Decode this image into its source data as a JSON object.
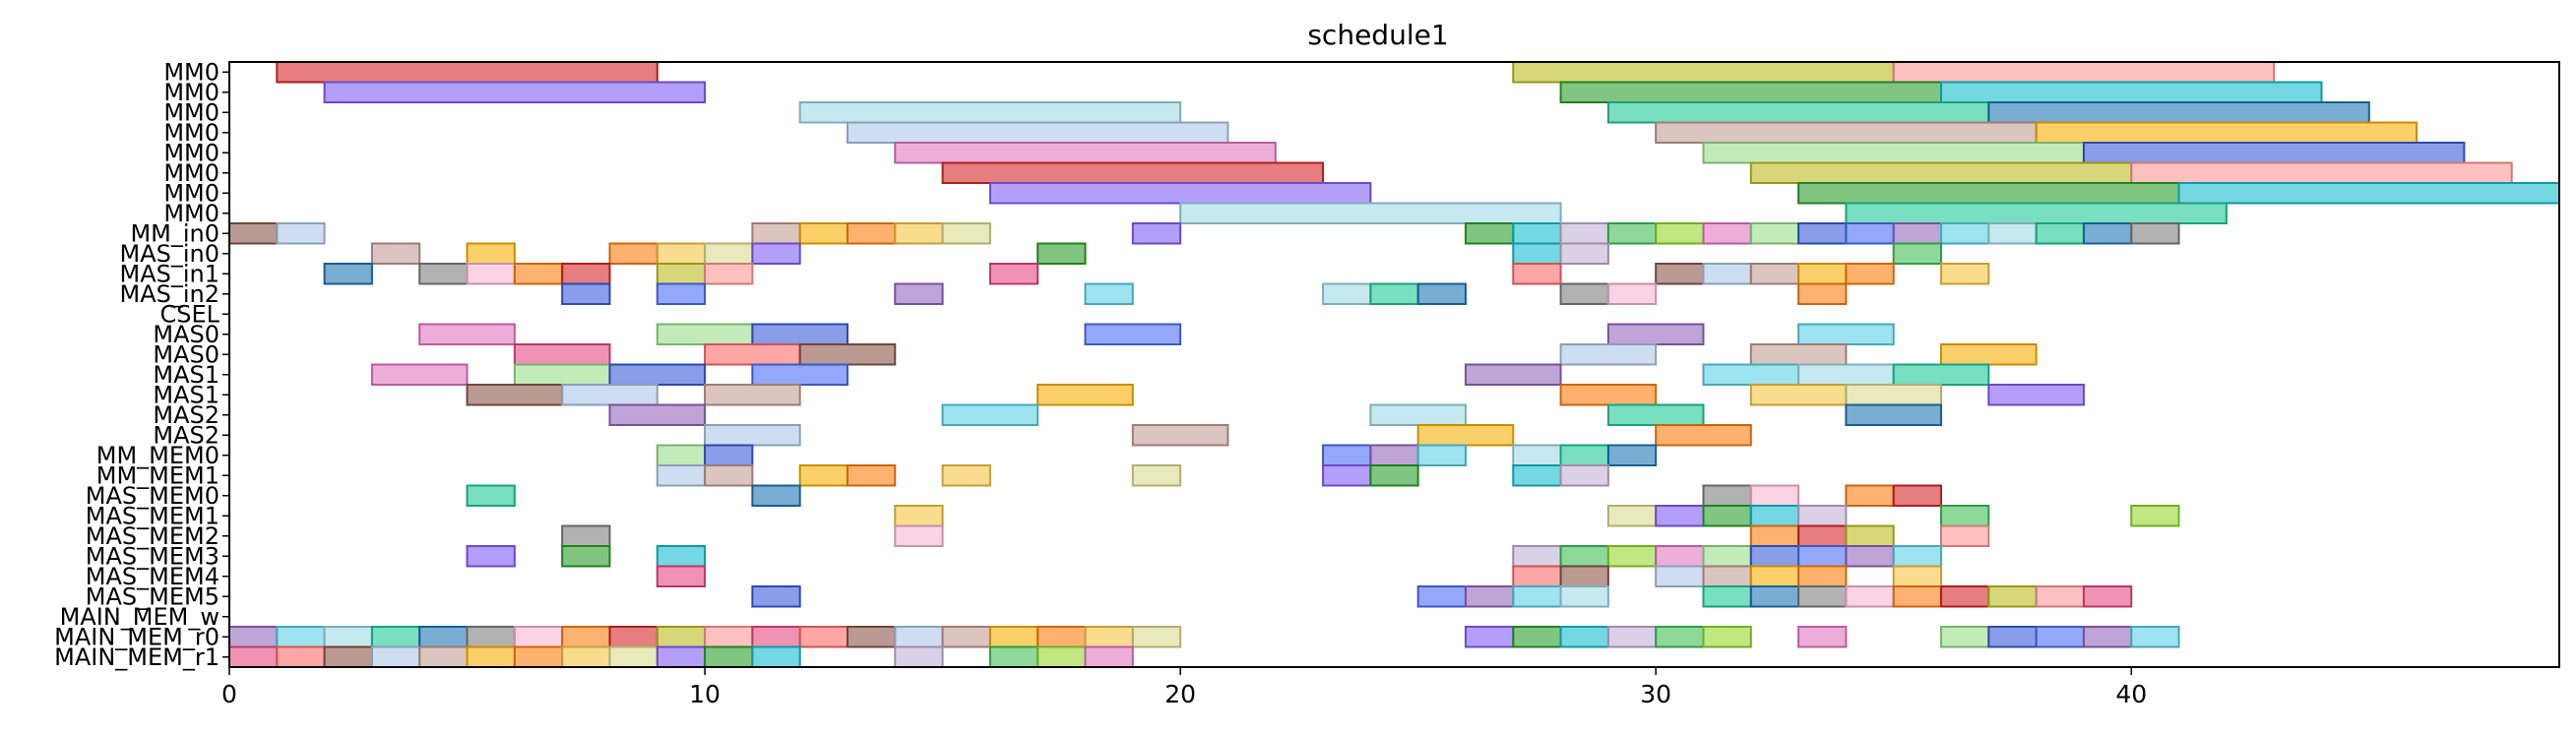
{
  "chart_data": {
    "type": "gantt",
    "title": "schedule1",
    "xlabel": "",
    "ylabel": "",
    "xlim": [
      0,
      49
    ],
    "xticks": [
      0,
      10,
      20,
      30,
      40
    ],
    "grid": false,
    "rows": [
      "MM0",
      "MM0",
      "MM0",
      "MM0",
      "MM0",
      "MM0",
      "MM0",
      "MM0",
      "MM_in0",
      "MAS_in0",
      "MAS_in1",
      "MAS_in2",
      "CSEL",
      "MAS0",
      "MAS0",
      "MAS1",
      "MAS1",
      "MAS2",
      "MAS2",
      "MM_MEM0",
      "MM_MEM1",
      "MAS_MEM0",
      "MAS_MEM1",
      "MAS_MEM2",
      "MAS_MEM3",
      "MAS_MEM4",
      "MAS_MEM5",
      "MAIN_MEM_w",
      "MAIN_MEM_r0",
      "MAIN_MEM_r1"
    ],
    "palette": [
      "#d62728",
      "#2ca02c",
      "#1f77b4",
      "#ff7f0e",
      "#9467bd",
      "#8c564b",
      "#e377c2",
      "#bcbd22",
      "#17becf",
      "#7f7f7f",
      "#f5c542",
      "#5bd1e6",
      "#aec7e8",
      "#98df8a",
      "#ff9896",
      "#c5b0d5",
      "#f7b6d2",
      "#dbdb8d",
      "#9edae5",
      "#c49c94",
      "#3b5bdb",
      "#e64980",
      "#40c057",
      "#fd7e14",
      "#845ef7",
      "#20c997",
      "#fab005",
      "#4c6ef5",
      "#ff6b6b",
      "#94d82d"
    ],
    "tasks": [
      {
        "row": 0,
        "start": 1,
        "end": 9
      },
      {
        "row": 0,
        "start": 27,
        "end": 35
      },
      {
        "row": 0,
        "start": 35,
        "end": 43
      },
      {
        "row": 1,
        "start": 2,
        "end": 10
      },
      {
        "row": 1,
        "start": 28,
        "end": 36
      },
      {
        "row": 1,
        "start": 36,
        "end": 44
      },
      {
        "row": 2,
        "start": 12,
        "end": 20
      },
      {
        "row": 2,
        "start": 29,
        "end": 37
      },
      {
        "row": 2,
        "start": 37,
        "end": 45
      },
      {
        "row": 3,
        "start": 13,
        "end": 21
      },
      {
        "row": 3,
        "start": 30,
        "end": 38
      },
      {
        "row": 3,
        "start": 38,
        "end": 46
      },
      {
        "row": 4,
        "start": 14,
        "end": 22
      },
      {
        "row": 4,
        "start": 31,
        "end": 39
      },
      {
        "row": 4,
        "start": 39,
        "end": 47
      },
      {
        "row": 5,
        "start": 15,
        "end": 23
      },
      {
        "row": 5,
        "start": 32,
        "end": 40
      },
      {
        "row": 5,
        "start": 40,
        "end": 48
      },
      {
        "row": 6,
        "start": 16,
        "end": 24
      },
      {
        "row": 6,
        "start": 33,
        "end": 41
      },
      {
        "row": 6,
        "start": 41,
        "end": 49
      },
      {
        "row": 7,
        "start": 20,
        "end": 28
      },
      {
        "row": 7,
        "start": 34,
        "end": 42
      },
      {
        "row": 8,
        "start": 0,
        "end": 1
      },
      {
        "row": 8,
        "start": 1,
        "end": 2
      },
      {
        "row": 8,
        "start": 11,
        "end": 12
      },
      {
        "row": 8,
        "start": 12,
        "end": 13
      },
      {
        "row": 8,
        "start": 13,
        "end": 14
      },
      {
        "row": 8,
        "start": 14,
        "end": 15
      },
      {
        "row": 8,
        "start": 15,
        "end": 16
      },
      {
        "row": 8,
        "start": 19,
        "end": 20
      },
      {
        "row": 8,
        "start": 26,
        "end": 27
      },
      {
        "row": 8,
        "start": 27,
        "end": 28
      },
      {
        "row": 8,
        "start": 28,
        "end": 29
      },
      {
        "row": 8,
        "start": 29,
        "end": 30
      },
      {
        "row": 8,
        "start": 30,
        "end": 31
      },
      {
        "row": 8,
        "start": 31,
        "end": 32
      },
      {
        "row": 8,
        "start": 32,
        "end": 33
      },
      {
        "row": 8,
        "start": 33,
        "end": 34
      },
      {
        "row": 8,
        "start": 34,
        "end": 35
      },
      {
        "row": 8,
        "start": 35,
        "end": 36
      },
      {
        "row": 8,
        "start": 36,
        "end": 37
      },
      {
        "row": 8,
        "start": 37,
        "end": 38
      },
      {
        "row": 8,
        "start": 38,
        "end": 39
      },
      {
        "row": 8,
        "start": 39,
        "end": 40
      },
      {
        "row": 8,
        "start": 40,
        "end": 41
      },
      {
        "row": 9,
        "start": 3,
        "end": 4
      },
      {
        "row": 9,
        "start": 5,
        "end": 6
      },
      {
        "row": 9,
        "start": 8,
        "end": 9
      },
      {
        "row": 9,
        "start": 9,
        "end": 10
      },
      {
        "row": 9,
        "start": 10,
        "end": 11
      },
      {
        "row": 9,
        "start": 11,
        "end": 12
      },
      {
        "row": 9,
        "start": 17,
        "end": 18
      },
      {
        "row": 9,
        "start": 27,
        "end": 28
      },
      {
        "row": 9,
        "start": 28,
        "end": 29
      },
      {
        "row": 9,
        "start": 35,
        "end": 36
      },
      {
        "row": 10,
        "start": 2,
        "end": 3
      },
      {
        "row": 10,
        "start": 4,
        "end": 5
      },
      {
        "row": 10,
        "start": 5,
        "end": 6
      },
      {
        "row": 10,
        "start": 6,
        "end": 7
      },
      {
        "row": 10,
        "start": 7,
        "end": 8
      },
      {
        "row": 10,
        "start": 9,
        "end": 10
      },
      {
        "row": 10,
        "start": 10,
        "end": 11
      },
      {
        "row": 10,
        "start": 16,
        "end": 17
      },
      {
        "row": 10,
        "start": 27,
        "end": 28
      },
      {
        "row": 10,
        "start": 30,
        "end": 31
      },
      {
        "row": 10,
        "start": 31,
        "end": 32
      },
      {
        "row": 10,
        "start": 32,
        "end": 33
      },
      {
        "row": 10,
        "start": 33,
        "end": 34
      },
      {
        "row": 10,
        "start": 34,
        "end": 35
      },
      {
        "row": 10,
        "start": 36,
        "end": 37
      },
      {
        "row": 11,
        "start": 7,
        "end": 8
      },
      {
        "row": 11,
        "start": 9,
        "end": 10
      },
      {
        "row": 11,
        "start": 14,
        "end": 15
      },
      {
        "row": 11,
        "start": 18,
        "end": 19
      },
      {
        "row": 11,
        "start": 23,
        "end": 24
      },
      {
        "row": 11,
        "start": 24,
        "end": 25
      },
      {
        "row": 11,
        "start": 25,
        "end": 26
      },
      {
        "row": 11,
        "start": 28,
        "end": 29
      },
      {
        "row": 11,
        "start": 29,
        "end": 30
      },
      {
        "row": 11,
        "start": 33,
        "end": 34
      },
      {
        "row": 13,
        "start": 4,
        "end": 6
      },
      {
        "row": 13,
        "start": 9,
        "end": 11
      },
      {
        "row": 13,
        "start": 11,
        "end": 13
      },
      {
        "row": 13,
        "start": 18,
        "end": 20
      },
      {
        "row": 13,
        "start": 29,
        "end": 31
      },
      {
        "row": 13,
        "start": 33,
        "end": 35
      },
      {
        "row": 14,
        "start": 6,
        "end": 8
      },
      {
        "row": 14,
        "start": 10,
        "end": 12
      },
      {
        "row": 14,
        "start": 12,
        "end": 14
      },
      {
        "row": 14,
        "start": 28,
        "end": 30
      },
      {
        "row": 14,
        "start": 32,
        "end": 34
      },
      {
        "row": 14,
        "start": 36,
        "end": 38
      },
      {
        "row": 15,
        "start": 3,
        "end": 5
      },
      {
        "row": 15,
        "start": 6,
        "end": 8
      },
      {
        "row": 15,
        "start": 8,
        "end": 10
      },
      {
        "row": 15,
        "start": 11,
        "end": 13
      },
      {
        "row": 15,
        "start": 26,
        "end": 28
      },
      {
        "row": 15,
        "start": 31,
        "end": 33
      },
      {
        "row": 15,
        "start": 33,
        "end": 35
      },
      {
        "row": 15,
        "start": 35,
        "end": 37
      },
      {
        "row": 16,
        "start": 5,
        "end": 7
      },
      {
        "row": 16,
        "start": 7,
        "end": 9
      },
      {
        "row": 16,
        "start": 10,
        "end": 12
      },
      {
        "row": 16,
        "start": 17,
        "end": 19
      },
      {
        "row": 16,
        "start": 28,
        "end": 30
      },
      {
        "row": 16,
        "start": 32,
        "end": 34
      },
      {
        "row": 16,
        "start": 34,
        "end": 36
      },
      {
        "row": 16,
        "start": 37,
        "end": 39
      },
      {
        "row": 17,
        "start": 8,
        "end": 10
      },
      {
        "row": 17,
        "start": 15,
        "end": 17
      },
      {
        "row": 17,
        "start": 24,
        "end": 26
      },
      {
        "row": 17,
        "start": 29,
        "end": 31
      },
      {
        "row": 17,
        "start": 34,
        "end": 36
      },
      {
        "row": 18,
        "start": 10,
        "end": 12
      },
      {
        "row": 18,
        "start": 19,
        "end": 21
      },
      {
        "row": 18,
        "start": 25,
        "end": 27
      },
      {
        "row": 18,
        "start": 30,
        "end": 32
      },
      {
        "row": 19,
        "start": 9,
        "end": 10
      },
      {
        "row": 19,
        "start": 10,
        "end": 11
      },
      {
        "row": 19,
        "start": 23,
        "end": 24
      },
      {
        "row": 19,
        "start": 24,
        "end": 25
      },
      {
        "row": 19,
        "start": 25,
        "end": 26
      },
      {
        "row": 19,
        "start": 27,
        "end": 28
      },
      {
        "row": 19,
        "start": 28,
        "end": 29
      },
      {
        "row": 19,
        "start": 29,
        "end": 30
      },
      {
        "row": 20,
        "start": 9,
        "end": 10
      },
      {
        "row": 20,
        "start": 10,
        "end": 11
      },
      {
        "row": 20,
        "start": 12,
        "end": 13
      },
      {
        "row": 20,
        "start": 13,
        "end": 14
      },
      {
        "row": 20,
        "start": 15,
        "end": 16
      },
      {
        "row": 20,
        "start": 19,
        "end": 20
      },
      {
        "row": 20,
        "start": 23,
        "end": 24
      },
      {
        "row": 20,
        "start": 24,
        "end": 25
      },
      {
        "row": 20,
        "start": 27,
        "end": 28
      },
      {
        "row": 20,
        "start": 28,
        "end": 29
      },
      {
        "row": 21,
        "start": 5,
        "end": 6
      },
      {
        "row": 21,
        "start": 11,
        "end": 12
      },
      {
        "row": 21,
        "start": 31,
        "end": 32
      },
      {
        "row": 21,
        "start": 32,
        "end": 33
      },
      {
        "row": 21,
        "start": 34,
        "end": 35
      },
      {
        "row": 21,
        "start": 35,
        "end": 36
      },
      {
        "row": 22,
        "start": 14,
        "end": 15
      },
      {
        "row": 22,
        "start": 29,
        "end": 30
      },
      {
        "row": 22,
        "start": 30,
        "end": 31
      },
      {
        "row": 22,
        "start": 31,
        "end": 32
      },
      {
        "row": 22,
        "start": 32,
        "end": 33
      },
      {
        "row": 22,
        "start": 33,
        "end": 34
      },
      {
        "row": 22,
        "start": 36,
        "end": 37
      },
      {
        "row": 22,
        "start": 40,
        "end": 41
      },
      {
        "row": 23,
        "start": 7,
        "end": 8
      },
      {
        "row": 23,
        "start": 14,
        "end": 15
      },
      {
        "row": 23,
        "start": 32,
        "end": 33
      },
      {
        "row": 23,
        "start": 33,
        "end": 34
      },
      {
        "row": 23,
        "start": 34,
        "end": 35
      },
      {
        "row": 23,
        "start": 36,
        "end": 37
      },
      {
        "row": 24,
        "start": 5,
        "end": 6
      },
      {
        "row": 24,
        "start": 7,
        "end": 8
      },
      {
        "row": 24,
        "start": 9,
        "end": 10
      },
      {
        "row": 24,
        "start": 27,
        "end": 28
      },
      {
        "row": 24,
        "start": 28,
        "end": 29
      },
      {
        "row": 24,
        "start": 29,
        "end": 30
      },
      {
        "row": 24,
        "start": 30,
        "end": 31
      },
      {
        "row": 24,
        "start": 31,
        "end": 32
      },
      {
        "row": 24,
        "start": 32,
        "end": 33
      },
      {
        "row": 24,
        "start": 33,
        "end": 34
      },
      {
        "row": 24,
        "start": 34,
        "end": 35
      },
      {
        "row": 24,
        "start": 35,
        "end": 36
      },
      {
        "row": 25,
        "start": 9,
        "end": 10
      },
      {
        "row": 25,
        "start": 27,
        "end": 28
      },
      {
        "row": 25,
        "start": 28,
        "end": 29
      },
      {
        "row": 25,
        "start": 30,
        "end": 31
      },
      {
        "row": 25,
        "start": 31,
        "end": 32
      },
      {
        "row": 25,
        "start": 32,
        "end": 33
      },
      {
        "row": 25,
        "start": 33,
        "end": 34
      },
      {
        "row": 25,
        "start": 35,
        "end": 36
      },
      {
        "row": 26,
        "start": 11,
        "end": 12
      },
      {
        "row": 26,
        "start": 25,
        "end": 26
      },
      {
        "row": 26,
        "start": 26,
        "end": 27
      },
      {
        "row": 26,
        "start": 27,
        "end": 28
      },
      {
        "row": 26,
        "start": 28,
        "end": 29
      },
      {
        "row": 26,
        "start": 31,
        "end": 32
      },
      {
        "row": 26,
        "start": 32,
        "end": 33
      },
      {
        "row": 26,
        "start": 33,
        "end": 34
      },
      {
        "row": 26,
        "start": 34,
        "end": 35
      },
      {
        "row": 26,
        "start": 35,
        "end": 36
      },
      {
        "row": 26,
        "start": 36,
        "end": 37
      },
      {
        "row": 26,
        "start": 37,
        "end": 38
      },
      {
        "row": 26,
        "start": 38,
        "end": 39
      },
      {
        "row": 26,
        "start": 39,
        "end": 40
      },
      {
        "row": 28,
        "start": 0,
        "end": 1
      },
      {
        "row": 28,
        "start": 1,
        "end": 2
      },
      {
        "row": 28,
        "start": 2,
        "end": 3
      },
      {
        "row": 28,
        "start": 3,
        "end": 4
      },
      {
        "row": 28,
        "start": 4,
        "end": 5
      },
      {
        "row": 28,
        "start": 5,
        "end": 6
      },
      {
        "row": 28,
        "start": 6,
        "end": 7
      },
      {
        "row": 28,
        "start": 7,
        "end": 8
      },
      {
        "row": 28,
        "start": 8,
        "end": 9
      },
      {
        "row": 28,
        "start": 9,
        "end": 10
      },
      {
        "row": 28,
        "start": 10,
        "end": 11
      },
      {
        "row": 28,
        "start": 11,
        "end": 12
      },
      {
        "row": 28,
        "start": 12,
        "end": 13
      },
      {
        "row": 28,
        "start": 13,
        "end": 14
      },
      {
        "row": 28,
        "start": 14,
        "end": 15
      },
      {
        "row": 28,
        "start": 15,
        "end": 16
      },
      {
        "row": 28,
        "start": 16,
        "end": 17
      },
      {
        "row": 28,
        "start": 17,
        "end": 18
      },
      {
        "row": 28,
        "start": 18,
        "end": 19
      },
      {
        "row": 28,
        "start": 19,
        "end": 20
      },
      {
        "row": 28,
        "start": 26,
        "end": 27
      },
      {
        "row": 28,
        "start": 27,
        "end": 28
      },
      {
        "row": 28,
        "start": 28,
        "end": 29
      },
      {
        "row": 28,
        "start": 29,
        "end": 30
      },
      {
        "row": 28,
        "start": 30,
        "end": 31
      },
      {
        "row": 28,
        "start": 31,
        "end": 32
      },
      {
        "row": 28,
        "start": 33,
        "end": 34
      },
      {
        "row": 28,
        "start": 36,
        "end": 37
      },
      {
        "row": 28,
        "start": 37,
        "end": 38
      },
      {
        "row": 28,
        "start": 38,
        "end": 39
      },
      {
        "row": 28,
        "start": 39,
        "end": 40
      },
      {
        "row": 28,
        "start": 40,
        "end": 41
      },
      {
        "row": 29,
        "start": 0,
        "end": 1
      },
      {
        "row": 29,
        "start": 1,
        "end": 2
      },
      {
        "row": 29,
        "start": 2,
        "end": 3
      },
      {
        "row": 29,
        "start": 3,
        "end": 4
      },
      {
        "row": 29,
        "start": 4,
        "end": 5
      },
      {
        "row": 29,
        "start": 5,
        "end": 6
      },
      {
        "row": 29,
        "start": 6,
        "end": 7
      },
      {
        "row": 29,
        "start": 7,
        "end": 8
      },
      {
        "row": 29,
        "start": 8,
        "end": 9
      },
      {
        "row": 29,
        "start": 9,
        "end": 10
      },
      {
        "row": 29,
        "start": 10,
        "end": 11
      },
      {
        "row": 29,
        "start": 11,
        "end": 12
      },
      {
        "row": 29,
        "start": 14,
        "end": 15
      },
      {
        "row": 29,
        "start": 16,
        "end": 17
      },
      {
        "row": 29,
        "start": 17,
        "end": 18
      },
      {
        "row": 29,
        "start": 18,
        "end": 19
      }
    ]
  }
}
